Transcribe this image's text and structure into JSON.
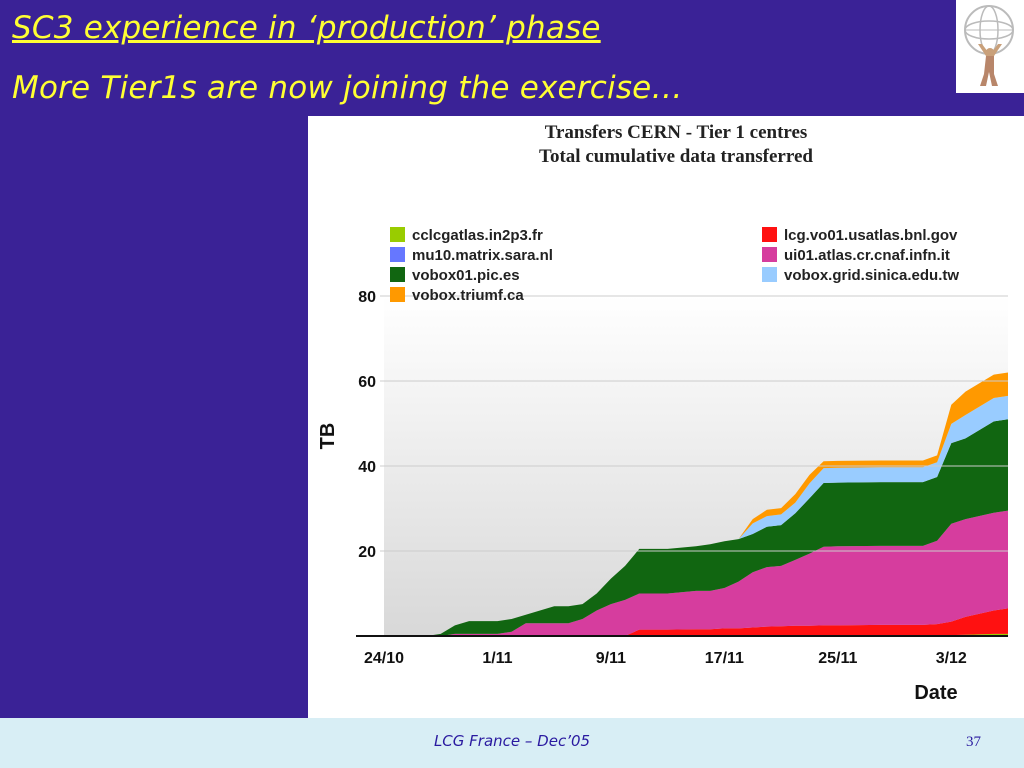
{
  "slide": {
    "title": "SC3 experience in ‘production’ phase",
    "subtitle": "More Tier1s are now joining the exercise…",
    "footer": "LCG France – Dec’05",
    "page_number": "37"
  },
  "chart_data": {
    "type": "area",
    "stacked": true,
    "title": "Transfers CERN - Tier 1 centres",
    "subtitle": "Total cumulative data transferred",
    "xlabel": "Date",
    "ylabel": "TB",
    "ylim": [
      0,
      80
    ],
    "yticks": [
      20,
      40,
      60,
      80
    ],
    "xlim": [
      "2005-10-24",
      "2005-12-07"
    ],
    "xticks": [
      "24/10",
      "1/11",
      "9/11",
      "17/11",
      "25/11",
      "3/12"
    ],
    "x": [
      "2005-10-24",
      "2005-10-27",
      "2005-10-28",
      "2005-10-29",
      "2005-10-30",
      "2005-11-01",
      "2005-11-02",
      "2005-11-03",
      "2005-11-05",
      "2005-11-06",
      "2005-11-07",
      "2005-11-08",
      "2005-11-09",
      "2005-11-10",
      "2005-11-11",
      "2005-11-13",
      "2005-11-15",
      "2005-11-16",
      "2005-11-17",
      "2005-11-18",
      "2005-11-19",
      "2005-11-20",
      "2005-11-21",
      "2005-11-22",
      "2005-11-23",
      "2005-11-24",
      "2005-11-25",
      "2005-11-28",
      "2005-11-30",
      "2005-12-01",
      "2005-12-02",
      "2005-12-03",
      "2005-12-04",
      "2005-12-06",
      "2005-12-07"
    ],
    "series": [
      {
        "name": "cclcgatlas.in2p3.fr",
        "color": "#99cc00",
        "values": [
          0,
          0,
          0,
          0,
          0,
          0,
          0,
          0,
          0,
          0,
          0,
          0,
          0,
          0,
          0,
          0,
          0,
          0,
          0,
          0,
          0,
          0,
          0,
          0,
          0,
          0,
          0,
          0,
          0,
          0,
          0,
          0.2,
          0.3,
          0.5,
          0.5
        ]
      },
      {
        "name": "lcg.vo01.usatlas.bnl.gov",
        "color": "#ff1111",
        "values": [
          0,
          0,
          0,
          0,
          0,
          0,
          0,
          0,
          0,
          0,
          0,
          0,
          0,
          0,
          1.5,
          1.5,
          1.6,
          1.6,
          1.8,
          1.8,
          2.0,
          2.2,
          2.3,
          2.4,
          2.4,
          2.5,
          2.5,
          2.6,
          2.6,
          2.6,
          2.8,
          3.2,
          4.2,
          5.5,
          6
        ]
      },
      {
        "name": "mu10.matrix.sara.nl",
        "color": "#6677ff",
        "values": [
          0,
          0,
          0,
          0,
          0,
          0,
          0,
          0,
          0,
          0,
          0,
          0,
          0,
          0,
          0,
          0,
          0,
          0,
          0,
          0,
          0,
          0,
          0,
          0,
          0,
          0,
          0,
          0,
          0,
          0,
          0,
          0,
          0,
          0,
          0
        ]
      },
      {
        "name": "ui01.atlas.cr.cnaf.infn.it",
        "color": "#d63d9e",
        "values": [
          0,
          0,
          0,
          0.5,
          0.5,
          0.5,
          1,
          3,
          3,
          3,
          4,
          6,
          7.5,
          8.5,
          8.5,
          8.5,
          9,
          9,
          9.5,
          11,
          13,
          14,
          14.2,
          15.5,
          17,
          18.5,
          18.6,
          18.6,
          18.6,
          18.6,
          19.6,
          23,
          23,
          23,
          23
        ]
      },
      {
        "name": "vobox01.pic.es",
        "color": "#116611",
        "values": [
          0,
          0,
          0.5,
          2,
          3,
          3,
          3,
          2,
          4,
          4,
          3.5,
          4,
          6,
          8,
          10.5,
          10.5,
          10.5,
          11,
          11,
          10,
          9,
          9.5,
          9.6,
          11,
          13,
          15,
          15,
          15,
          15,
          15,
          15,
          19,
          19,
          21.5,
          21.5
        ]
      },
      {
        "name": "vobox.grid.sinica.edu.tw",
        "color": "#99ccff",
        "values": [
          0,
          0,
          0,
          0,
          0,
          0,
          0,
          0,
          0,
          0,
          0,
          0,
          0,
          0,
          0,
          0,
          0,
          0,
          0,
          0,
          2.5,
          2.5,
          2.5,
          2.5,
          3.5,
          3.5,
          3.5,
          3.5,
          3.5,
          3.5,
          3.5,
          4.5,
          5.5,
          5.5,
          5.5
        ]
      },
      {
        "name": "vobox.triumf.ca",
        "color": "#ff9900",
        "values": [
          0,
          0,
          0,
          0,
          0,
          0,
          0,
          0,
          0,
          0,
          0,
          0,
          0,
          0,
          0,
          0,
          0,
          0,
          0,
          0,
          1,
          1.5,
          1.5,
          2,
          2,
          1.6,
          1.6,
          1.6,
          1.6,
          1.6,
          1.6,
          4.5,
          5.5,
          5.5,
          5.5
        ]
      }
    ],
    "legend": {
      "placement": "top",
      "left_column": [
        "cclcgatlas.in2p3.fr",
        "mu10.matrix.sara.nl",
        "vobox01.pic.es",
        "vobox.triumf.ca"
      ],
      "right_column": [
        "lcg.vo01.usatlas.bnl.gov",
        "ui01.atlas.cr.cnaf.infn.it",
        "vobox.grid.sinica.edu.tw"
      ]
    },
    "grid": false
  }
}
